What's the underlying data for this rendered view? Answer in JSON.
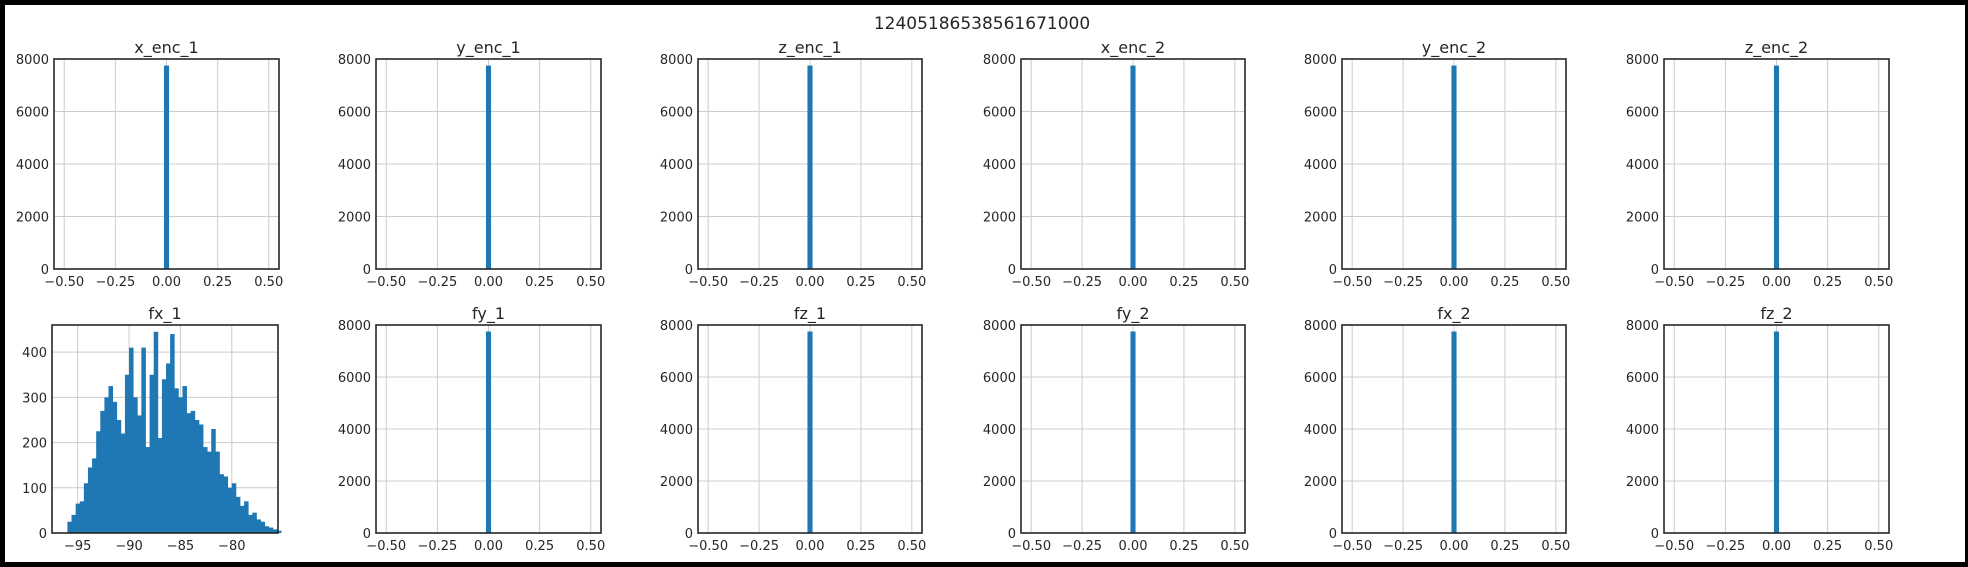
{
  "suptitle": "12405186538561671000",
  "colors": {
    "bar": "#1f77b4",
    "grid": "#cccccc",
    "axes": "#262626",
    "text": "#262626"
  },
  "chart_data": [
    {
      "type": "bar",
      "title": "x_enc_1",
      "xlim": [
        -0.55,
        0.55
      ],
      "ylim": [
        0,
        8000
      ],
      "xticks": [
        -0.5,
        -0.25,
        0,
        0.25,
        0.5
      ],
      "xtick_labels": [
        "−0.50",
        "−0.25",
        "0.00",
        "0.25",
        "0.50"
      ],
      "yticks": [
        0,
        2000,
        4000,
        6000,
        8000
      ],
      "ytick_labels": [
        "0",
        "2000",
        "4000",
        "6000",
        "8000"
      ],
      "bars": [
        {
          "x0": -0.0125,
          "x1": 0.0125,
          "value": 7750
        }
      ],
      "grid": true
    },
    {
      "type": "bar",
      "title": "y_enc_1",
      "xlim": [
        -0.55,
        0.55
      ],
      "ylim": [
        0,
        8000
      ],
      "xticks": [
        -0.5,
        -0.25,
        0,
        0.25,
        0.5
      ],
      "xtick_labels": [
        "−0.50",
        "−0.25",
        "0.00",
        "0.25",
        "0.50"
      ],
      "yticks": [
        0,
        2000,
        4000,
        6000,
        8000
      ],
      "ytick_labels": [
        "0",
        "2000",
        "4000",
        "6000",
        "8000"
      ],
      "bars": [
        {
          "x0": -0.0125,
          "x1": 0.0125,
          "value": 7750
        }
      ],
      "grid": true
    },
    {
      "type": "bar",
      "title": "z_enc_1",
      "xlim": [
        -0.55,
        0.55
      ],
      "ylim": [
        0,
        8000
      ],
      "xticks": [
        -0.5,
        -0.25,
        0,
        0.25,
        0.5
      ],
      "xtick_labels": [
        "−0.50",
        "−0.25",
        "0.00",
        "0.25",
        "0.50"
      ],
      "yticks": [
        0,
        2000,
        4000,
        6000,
        8000
      ],
      "ytick_labels": [
        "0",
        "2000",
        "4000",
        "6000",
        "8000"
      ],
      "bars": [
        {
          "x0": -0.0125,
          "x1": 0.0125,
          "value": 7750
        }
      ],
      "grid": true
    },
    {
      "type": "bar",
      "title": "x_enc_2",
      "xlim": [
        -0.55,
        0.55
      ],
      "ylim": [
        0,
        8000
      ],
      "xticks": [
        -0.5,
        -0.25,
        0,
        0.25,
        0.5
      ],
      "xtick_labels": [
        "−0.50",
        "−0.25",
        "0.00",
        "0.25",
        "0.50"
      ],
      "yticks": [
        0,
        2000,
        4000,
        6000,
        8000
      ],
      "ytick_labels": [
        "0",
        "2000",
        "4000",
        "6000",
        "8000"
      ],
      "bars": [
        {
          "x0": -0.0125,
          "x1": 0.0125,
          "value": 7750
        }
      ],
      "grid": true
    },
    {
      "type": "bar",
      "title": "y_enc_2",
      "xlim": [
        -0.55,
        0.55
      ],
      "ylim": [
        0,
        8000
      ],
      "xticks": [
        -0.5,
        -0.25,
        0,
        0.25,
        0.5
      ],
      "xtick_labels": [
        "−0.50",
        "−0.25",
        "0.00",
        "0.25",
        "0.50"
      ],
      "yticks": [
        0,
        2000,
        4000,
        6000,
        8000
      ],
      "ytick_labels": [
        "0",
        "2000",
        "4000",
        "6000",
        "8000"
      ],
      "bars": [
        {
          "x0": -0.0125,
          "x1": 0.0125,
          "value": 7750
        }
      ],
      "grid": true
    },
    {
      "type": "bar",
      "title": "z_enc_2",
      "xlim": [
        -0.55,
        0.55
      ],
      "ylim": [
        0,
        8000
      ],
      "xticks": [
        -0.5,
        -0.25,
        0,
        0.25,
        0.5
      ],
      "xtick_labels": [
        "−0.50",
        "−0.25",
        "0.00",
        "0.25",
        "0.50"
      ],
      "yticks": [
        0,
        2000,
        4000,
        6000,
        8000
      ],
      "ytick_labels": [
        "0",
        "2000",
        "4000",
        "6000",
        "8000"
      ],
      "bars": [
        {
          "x0": -0.0125,
          "x1": 0.0125,
          "value": 7750
        }
      ],
      "grid": true
    },
    {
      "type": "bar",
      "title": "fx_1",
      "xlim": [
        -97.5,
        -75.5
      ],
      "ylim": [
        0,
        460
      ],
      "xticks": [
        -95,
        -90,
        -85,
        -80
      ],
      "xtick_labels": [
        "−95",
        "−90",
        "−85",
        "−80"
      ],
      "yticks": [
        0,
        100,
        200,
        300,
        400
      ],
      "ytick_labels": [
        "0",
        "100",
        "200",
        "300",
        "400"
      ],
      "hist": {
        "start": -96,
        "width": 0.4,
        "counts": [
          25,
          40,
          65,
          70,
          110,
          145,
          165,
          225,
          270,
          300,
          325,
          290,
          250,
          220,
          350,
          410,
          300,
          260,
          410,
          190,
          350,
          445,
          210,
          340,
          375,
          440,
          320,
          300,
          325,
          265,
          270,
          250,
          240,
          190,
          180,
          230,
          180,
          130,
          125,
          100,
          110,
          80,
          60,
          70,
          40,
          45,
          30,
          25,
          15,
          12,
          8,
          5
        ]
      },
      "grid": true
    },
    {
      "type": "bar",
      "title": "fy_1",
      "xlim": [
        -0.55,
        0.55
      ],
      "ylim": [
        0,
        8000
      ],
      "xticks": [
        -0.5,
        -0.25,
        0,
        0.25,
        0.5
      ],
      "xtick_labels": [
        "−0.50",
        "−0.25",
        "0.00",
        "0.25",
        "0.50"
      ],
      "yticks": [
        0,
        2000,
        4000,
        6000,
        8000
      ],
      "ytick_labels": [
        "0",
        "2000",
        "4000",
        "6000",
        "8000"
      ],
      "bars": [
        {
          "x0": -0.0125,
          "x1": 0.0125,
          "value": 7750
        }
      ],
      "grid": true
    },
    {
      "type": "bar",
      "title": "fz_1",
      "xlim": [
        -0.55,
        0.55
      ],
      "ylim": [
        0,
        8000
      ],
      "xticks": [
        -0.5,
        -0.25,
        0,
        0.25,
        0.5
      ],
      "xtick_labels": [
        "−0.50",
        "−0.25",
        "0.00",
        "0.25",
        "0.50"
      ],
      "yticks": [
        0,
        2000,
        4000,
        6000,
        8000
      ],
      "ytick_labels": [
        "0",
        "2000",
        "4000",
        "6000",
        "8000"
      ],
      "bars": [
        {
          "x0": -0.0125,
          "x1": 0.0125,
          "value": 7750
        }
      ],
      "grid": true
    },
    {
      "type": "bar",
      "title": "fy_2",
      "xlim": [
        -0.55,
        0.55
      ],
      "ylim": [
        0,
        8000
      ],
      "xticks": [
        -0.5,
        -0.25,
        0,
        0.25,
        0.5
      ],
      "xtick_labels": [
        "−0.50",
        "−0.25",
        "0.00",
        "0.25",
        "0.50"
      ],
      "yticks": [
        0,
        2000,
        4000,
        6000,
        8000
      ],
      "ytick_labels": [
        "0",
        "2000",
        "4000",
        "6000",
        "8000"
      ],
      "bars": [
        {
          "x0": -0.0125,
          "x1": 0.0125,
          "value": 7750
        }
      ],
      "grid": true
    },
    {
      "type": "bar",
      "title": "fx_2",
      "xlim": [
        -0.55,
        0.55
      ],
      "ylim": [
        0,
        8000
      ],
      "xticks": [
        -0.5,
        -0.25,
        0,
        0.25,
        0.5
      ],
      "xtick_labels": [
        "−0.50",
        "−0.25",
        "0.00",
        "0.25",
        "0.50"
      ],
      "yticks": [
        0,
        2000,
        4000,
        6000,
        8000
      ],
      "ytick_labels": [
        "0",
        "2000",
        "4000",
        "6000",
        "8000"
      ],
      "bars": [
        {
          "x0": -0.0125,
          "x1": 0.0125,
          "value": 7750
        }
      ],
      "grid": true
    },
    {
      "type": "bar",
      "title": "fz_2",
      "xlim": [
        -0.55,
        0.55
      ],
      "ylim": [
        0,
        8000
      ],
      "xticks": [
        -0.5,
        -0.25,
        0,
        0.25,
        0.5
      ],
      "xtick_labels": [
        "−0.50",
        "−0.25",
        "0.00",
        "0.25",
        "0.50"
      ],
      "yticks": [
        0,
        2000,
        4000,
        6000,
        8000
      ],
      "ytick_labels": [
        "0",
        "2000",
        "4000",
        "6000",
        "8000"
      ],
      "bars": [
        {
          "x0": -0.0125,
          "x1": 0.0125,
          "value": 7750
        }
      ],
      "grid": true
    }
  ]
}
